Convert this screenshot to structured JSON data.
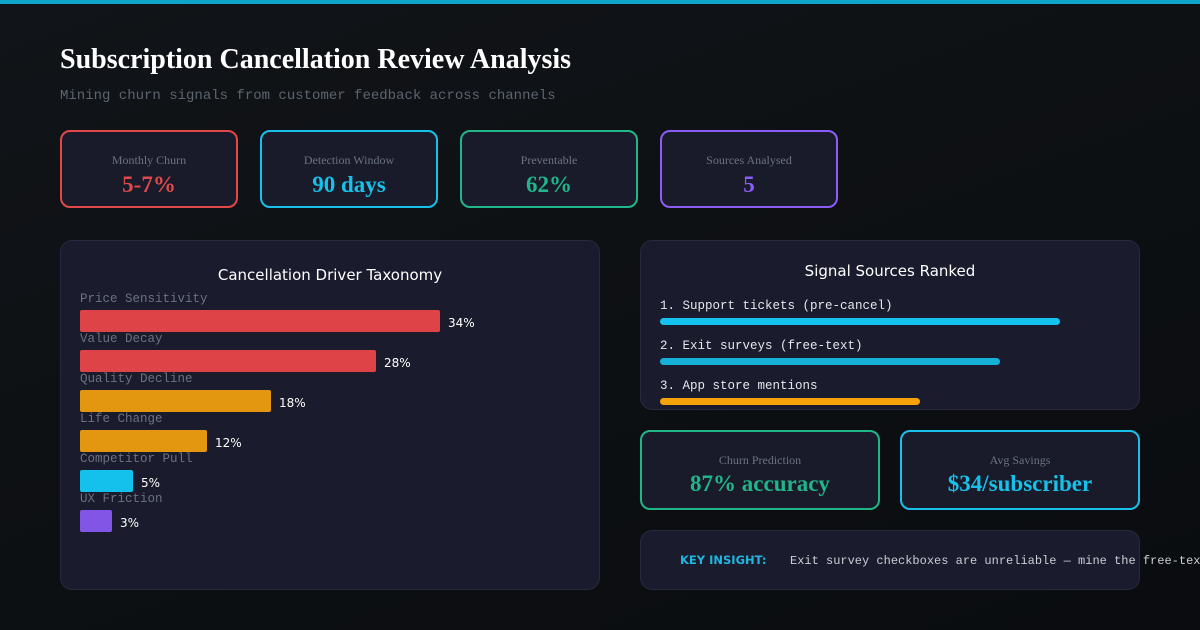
{
  "header": {
    "title": "Subscription Cancellation Review Analysis",
    "subtitle": "Mining churn signals from customer feedback across channels"
  },
  "stats": [
    {
      "label": "Monthly Churn",
      "value": "5-7%",
      "color": "#e0484a"
    },
    {
      "label": "Detection Window",
      "value": "90 days",
      "color": "#17c1ea"
    },
    {
      "label": "Preventable",
      "value": "62%",
      "color": "#21b58a"
    },
    {
      "label": "Sources Analysed",
      "value": "5",
      "color": "#8b5cf6"
    }
  ],
  "drivers_panel": {
    "title": "Cancellation Driver Taxonomy"
  },
  "chart_data": {
    "type": "bar",
    "orientation": "horizontal",
    "title": "Cancellation Driver Taxonomy",
    "categories": [
      "Price Sensitivity",
      "Value Decay",
      "Quality Decline",
      "Life Change",
      "Competitor Pull",
      "UX Friction"
    ],
    "values": [
      34,
      28,
      18,
      12,
      5,
      3
    ],
    "value_labels": [
      "34%",
      "28%",
      "18%",
      "12%",
      "5%",
      "3%"
    ],
    "colors": [
      "#de4348",
      "#de4348",
      "#e3960f",
      "#e3960f",
      "#14c1ec",
      "#8255e6"
    ],
    "unit": "%"
  },
  "sources_panel": {
    "title": "Signal Sources Ranked",
    "items": [
      {
        "label": "1. Support tickets (pre-cancel)",
        "strength": 1.0,
        "color": "#14c4ee"
      },
      {
        "label": "2. Exit surveys (free-text)",
        "strength": 0.85,
        "color": "#14b0d6"
      },
      {
        "label": "3. App store mentions",
        "strength": 0.65,
        "color": "#f5a20b"
      }
    ]
  },
  "metrics": [
    {
      "label": "Churn Prediction",
      "value": "87% accuracy",
      "color": "#21b58a"
    },
    {
      "label": "Avg Savings",
      "value": "$34/subscriber",
      "color": "#17c1ea"
    }
  ],
  "insight": {
    "label": "KEY INSIGHT:",
    "text": "Exit survey checkboxes are unreliable — mine the free-text fields"
  }
}
